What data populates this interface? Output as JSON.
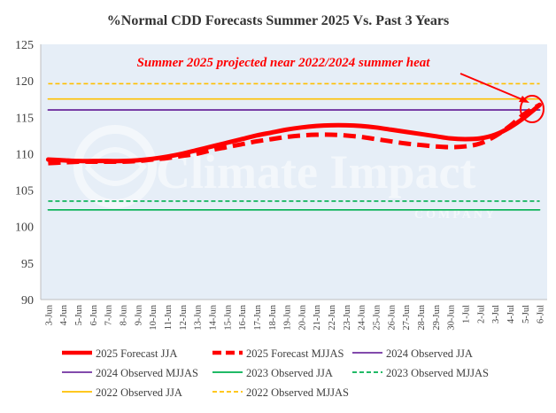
{
  "chart_data": {
    "type": "line",
    "title": "%Normal CDD Forecasts Summer 2025 Vs. Past 3 Years",
    "annotation": "Summer 2025 projected near 2022/2024 summer heat",
    "watermark": {
      "line1": "Climate Impact",
      "line2": "COMPANY"
    },
    "ylim": [
      90,
      125
    ],
    "yticks": [
      90,
      95,
      100,
      105,
      110,
      115,
      120,
      125
    ],
    "grid": false,
    "plot_background": "#e6eef7",
    "legend_placement": "bottom",
    "categories": [
      "3-Jun",
      "4-Jun",
      "5-Jun",
      "6-Jun",
      "7-Jun",
      "8-Jun",
      "9-Jun",
      "10-Jun",
      "11-Jun",
      "12-Jun",
      "13-Jun",
      "14-Jun",
      "15-Jun",
      "16-Jun",
      "17-Jun",
      "18-Jun",
      "19-Jun",
      "20-Jun",
      "21-Jun",
      "22-Jun",
      "23-Jun",
      "24-Jun",
      "25-Jun",
      "26-Jun",
      "27-Jun",
      "28-Jun",
      "29-Jun",
      "30-Jun",
      "1-Jul",
      "2-Jul",
      "3-Jul",
      "4-Jul",
      "5-Jul",
      "6-Jul"
    ],
    "series": [
      {
        "name": "2025 Forecast JJA",
        "color": "#ff0000",
        "style": "solid-thick",
        "values": [
          109.2,
          109.1,
          109.0,
          109.0,
          109.0,
          109.0,
          109.1,
          109.3,
          109.6,
          110.0,
          110.5,
          111.0,
          111.5,
          112.0,
          112.5,
          112.9,
          113.3,
          113.6,
          113.8,
          113.9,
          113.9,
          113.8,
          113.6,
          113.3,
          113.0,
          112.7,
          112.4,
          112.1,
          112.0,
          112.1,
          112.6,
          113.6,
          115.0,
          116.7
        ]
      },
      {
        "name": "2025 Forecast MJJAS",
        "color": "#ff0000",
        "style": "dashed-thick",
        "values": [
          108.7,
          108.8,
          108.9,
          108.9,
          108.9,
          108.9,
          109.0,
          109.2,
          109.4,
          109.7,
          110.0,
          110.5,
          110.9,
          111.3,
          111.7,
          112.0,
          112.3,
          112.5,
          112.6,
          112.6,
          112.5,
          112.3,
          112.0,
          111.7,
          111.4,
          111.2,
          111.0,
          110.9,
          111.0,
          111.4,
          112.4,
          113.8,
          115.5,
          116.7
        ]
      },
      {
        "name": "2024 Observed JJA",
        "color": "#7030a0",
        "style": "solid",
        "constant": 116.0
      },
      {
        "name": "2024 Observed MJJAS",
        "color": "#7030a0",
        "style": "solid",
        "constant": 116.0
      },
      {
        "name": "2023 Observed JJA",
        "color": "#00b050",
        "style": "solid",
        "constant": 102.3
      },
      {
        "name": "2023 Observed MJJAS",
        "color": "#00b050",
        "style": "dashed",
        "constant": 103.5
      },
      {
        "name": "2022 Observed JJA",
        "color": "#ffc000",
        "style": "solid",
        "constant": 117.5
      },
      {
        "name": "2022 Observed MJJAS",
        "color": "#ffc000",
        "style": "dashed",
        "constant": 119.6
      }
    ]
  }
}
